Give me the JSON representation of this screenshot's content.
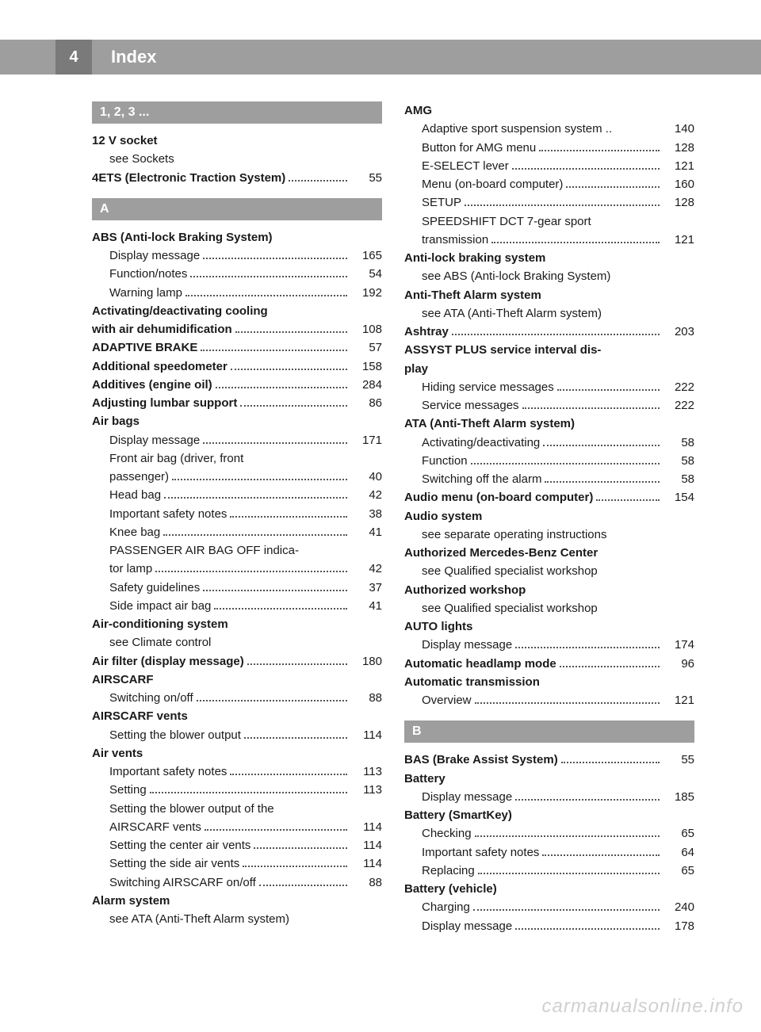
{
  "page_number": "4",
  "header_title": "Index",
  "watermark": "carmanualsonline.info",
  "colors": {
    "header_bar": "#9e9e9e",
    "pagebox": "#7a7a7a",
    "text": "#1a1a1a",
    "white": "#ffffff",
    "watermark": "#d0d0d0"
  },
  "left": [
    {
      "type": "section",
      "text": "1, 2, 3 ..."
    },
    {
      "type": "bold",
      "text": "12 V socket"
    },
    {
      "type": "sub",
      "text": "see Sockets"
    },
    {
      "type": "boldpage",
      "text": "4ETS (Electronic Traction System)",
      "page": "55"
    },
    {
      "type": "section",
      "text": "A"
    },
    {
      "type": "bold",
      "text": "ABS (Anti-lock Braking System)"
    },
    {
      "type": "subpage",
      "text": "Display message",
      "page": "165"
    },
    {
      "type": "subpage",
      "text": "Function/notes",
      "page": "54"
    },
    {
      "type": "subpage",
      "text": "Warning lamp",
      "page": "192"
    },
    {
      "type": "bold_multiline",
      "line1": "Activating/deactivating cooling",
      "line2": "with air dehumidification",
      "page": "108"
    },
    {
      "type": "boldpage",
      "text": "ADAPTIVE BRAKE",
      "page": "57"
    },
    {
      "type": "boldpage",
      "text": "Additional speedometer",
      "page": "158"
    },
    {
      "type": "boldpage",
      "text": "Additives (engine oil)",
      "page": "284"
    },
    {
      "type": "boldpage",
      "text": "Adjusting lumbar support",
      "page": "86"
    },
    {
      "type": "bold",
      "text": "Air bags"
    },
    {
      "type": "subpage",
      "text": "Display message",
      "page": "171"
    },
    {
      "type": "sub_multiline",
      "line1": "Front air bag (driver, front",
      "line2": "passenger)",
      "page": "40"
    },
    {
      "type": "subpage",
      "text": "Head bag",
      "page": "42"
    },
    {
      "type": "subpage",
      "text": "Important safety notes",
      "page": "38"
    },
    {
      "type": "subpage",
      "text": "Knee bag",
      "page": "41"
    },
    {
      "type": "sub_multiline",
      "line1": "PASSENGER AIR BAG OFF indica-",
      "line2": "tor lamp",
      "page": "42"
    },
    {
      "type": "subpage",
      "text": "Safety guidelines",
      "page": "37"
    },
    {
      "type": "subpage",
      "text": "Side impact air bag",
      "page": "41"
    },
    {
      "type": "bold",
      "text": "Air-conditioning system"
    },
    {
      "type": "sub",
      "text": "see Climate control"
    },
    {
      "type": "boldpage",
      "text": "Air filter (display message)",
      "page": "180"
    },
    {
      "type": "bold",
      "text": "AIRSCARF"
    },
    {
      "type": "subpage",
      "text": "Switching on/off",
      "page": "88"
    },
    {
      "type": "bold",
      "text": "AIRSCARF vents"
    },
    {
      "type": "subpage",
      "text": "Setting the blower output",
      "page": "114"
    },
    {
      "type": "bold",
      "text": "Air vents"
    },
    {
      "type": "subpage",
      "text": "Important safety notes",
      "page": "113"
    },
    {
      "type": "subpage",
      "text": "Setting",
      "page": "113"
    },
    {
      "type": "sub_multiline",
      "line1": "Setting the blower output of the",
      "line2": "AIRSCARF vents",
      "page": "114"
    },
    {
      "type": "subpage",
      "text": "Setting the center air vents",
      "page": "114"
    },
    {
      "type": "subpage",
      "text": "Setting the side air vents",
      "page": "114"
    },
    {
      "type": "subpage",
      "text": "Switching AIRSCARF on/off",
      "page": "88"
    },
    {
      "type": "bold",
      "text": "Alarm system"
    },
    {
      "type": "sub",
      "text": "see ATA (Anti-Theft Alarm system)"
    }
  ],
  "right": [
    {
      "type": "bold",
      "text": "AMG"
    },
    {
      "type": "subpage",
      "text": "Adaptive sport suspension system",
      "page": "140",
      "tight": true
    },
    {
      "type": "subpage",
      "text": "Button for AMG menu",
      "page": "128"
    },
    {
      "type": "subpage",
      "text": "E-SELECT lever",
      "page": "121"
    },
    {
      "type": "subpage",
      "text": "Menu (on-board computer)",
      "page": "160"
    },
    {
      "type": "subpage",
      "text": "SETUP",
      "page": "128"
    },
    {
      "type": "sub_multiline",
      "line1": "SPEEDSHIFT DCT 7-gear sport",
      "line2": "transmission",
      "page": "121"
    },
    {
      "type": "bold",
      "text": "Anti-lock braking system"
    },
    {
      "type": "sub",
      "text": "see ABS (Anti-lock Braking System)"
    },
    {
      "type": "bold",
      "text": "Anti-Theft Alarm system"
    },
    {
      "type": "sub",
      "text": "see ATA (Anti-Theft Alarm system)"
    },
    {
      "type": "boldpage",
      "text": "Ashtray",
      "page": "203"
    },
    {
      "type": "bold_multiline_nopagefirst",
      "line1": "ASSYST PLUS service interval dis-",
      "line2": "play"
    },
    {
      "type": "subpage",
      "text": "Hiding service messages",
      "page": "222"
    },
    {
      "type": "subpage",
      "text": "Service messages",
      "page": "222"
    },
    {
      "type": "bold",
      "text": "ATA (Anti-Theft Alarm system)"
    },
    {
      "type": "subpage",
      "text": "Activating/deactivating",
      "page": "58"
    },
    {
      "type": "subpage",
      "text": "Function",
      "page": "58"
    },
    {
      "type": "subpage",
      "text": "Switching off the alarm",
      "page": "58"
    },
    {
      "type": "boldpage",
      "text": "Audio menu (on-board computer)",
      "page": "154"
    },
    {
      "type": "bold",
      "text": "Audio system"
    },
    {
      "type": "sub",
      "text": "see separate operating instructions"
    },
    {
      "type": "bold",
      "text": "Authorized Mercedes-Benz Center"
    },
    {
      "type": "sub",
      "text": "see Qualified specialist workshop"
    },
    {
      "type": "bold",
      "text": "Authorized workshop"
    },
    {
      "type": "sub",
      "text": "see Qualified specialist workshop"
    },
    {
      "type": "bold",
      "text": "AUTO lights"
    },
    {
      "type": "subpage",
      "text": "Display message",
      "page": "174"
    },
    {
      "type": "boldpage",
      "text": "Automatic headlamp mode",
      "page": "96"
    },
    {
      "type": "bold",
      "text": "Automatic transmission"
    },
    {
      "type": "subpage",
      "text": "Overview",
      "page": "121"
    },
    {
      "type": "section",
      "text": "B"
    },
    {
      "type": "boldpage",
      "text": "BAS (Brake Assist System)",
      "page": "55"
    },
    {
      "type": "bold",
      "text": "Battery"
    },
    {
      "type": "subpage",
      "text": "Display message",
      "page": "185"
    },
    {
      "type": "bold",
      "text": "Battery (SmartKey)"
    },
    {
      "type": "subpage",
      "text": "Checking",
      "page": "65"
    },
    {
      "type": "subpage",
      "text": "Important safety notes",
      "page": "64"
    },
    {
      "type": "subpage",
      "text": "Replacing",
      "page": "65"
    },
    {
      "type": "bold",
      "text": "Battery (vehicle)"
    },
    {
      "type": "subpage",
      "text": "Charging",
      "page": "240"
    },
    {
      "type": "subpage",
      "text": "Display message",
      "page": "178"
    }
  ]
}
